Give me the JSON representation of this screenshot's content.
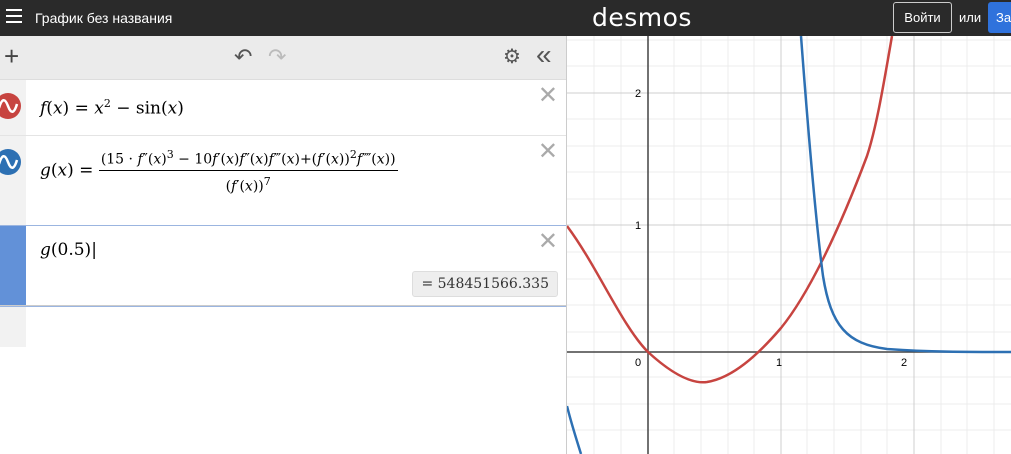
{
  "header": {
    "graph_title": "График без названия",
    "logo": "desmos",
    "login_label": "Войти",
    "or_label": "или",
    "signup_label": "Зарегистрироваться"
  },
  "toolbar": {
    "add_icon": "+",
    "undo_icon": "↶",
    "redo_icon": "↷",
    "settings_icon": "⚙",
    "collapse_icon": "«"
  },
  "expressions": [
    {
      "color": "#c74440",
      "text": "f(x) = x^2 − sin(x)"
    },
    {
      "color": "#2d70b3",
      "text": "g(x) = (15·f″(x)^3 − 10f′(x)f″(x)f‴(x) + (f′(x))^2 f⁗(x)) / (f′(x))^7"
    },
    {
      "color": "#6291d8",
      "text": "g(0.5)",
      "result": "= 548451566.335"
    }
  ],
  "graph": {
    "x_ticks": [
      "0",
      "1",
      "2"
    ],
    "y_ticks": [
      "2",
      "1"
    ],
    "colors": {
      "f": "#c74440",
      "g": "#2d70b3"
    }
  }
}
